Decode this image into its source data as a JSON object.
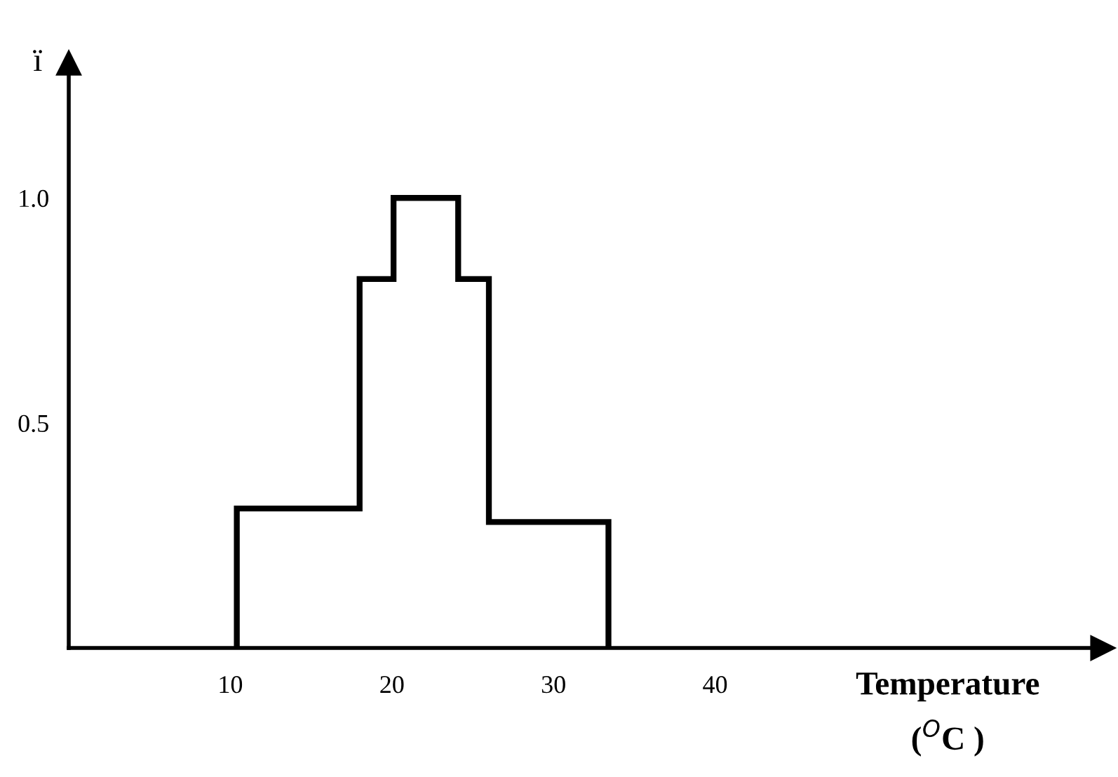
{
  "chart_data": {
    "type": "histogram",
    "ylabel": "ï",
    "xlabel": "Temperature\n($^{O}$C )",
    "bins": [
      10.4,
      18.0,
      20.1,
      24.1,
      26.0,
      33.4
    ],
    "values": [
      0.31,
      0.82,
      1.0,
      0.82,
      0.28
    ],
    "color": "#000000",
    "xlim": [
      0,
      64
    ],
    "ylim": [
      0,
      1.3
    ],
    "xticks": [
      10,
      20,
      30,
      40
    ],
    "yticks": [
      0.5,
      {
        "value": 1,
        "label": "1.0"
      }
    ],
    "grid": false,
    "legend": false
  }
}
